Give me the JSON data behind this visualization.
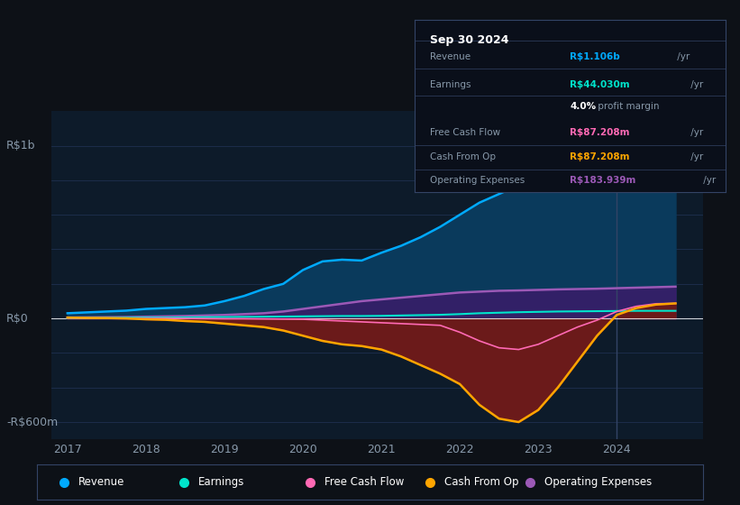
{
  "bg_color": "#0d1117",
  "chart_bg": "#0d1b2a",
  "grid_color": "#1e3050",
  "title_box_date": "Sep 30 2024",
  "info_rows": [
    {
      "label": "Revenue",
      "value": "R$1.106b",
      "unit": "/yr",
      "color": "#00aaff"
    },
    {
      "label": "Earnings",
      "value": "R$44.030m",
      "unit": "/yr",
      "color": "#00e5cc"
    },
    {
      "label": "",
      "value": "4.0%",
      "unit": " profit margin",
      "color": "#ffffff"
    },
    {
      "label": "Free Cash Flow",
      "value": "R$87.208m",
      "unit": "/yr",
      "color": "#ff69b4"
    },
    {
      "label": "Cash From Op",
      "value": "R$87.208m",
      "unit": "/yr",
      "color": "#ffa500"
    },
    {
      "label": "Operating Expenses",
      "value": "R$183.939m",
      "unit": "/yr",
      "color": "#9b59b6"
    }
  ],
  "ylabel_top": "R$1b",
  "ylabel_zero": "R$0",
  "ylabel_bottom": "-R$600m",
  "x_ticks": [
    "2017",
    "2018",
    "2019",
    "2020",
    "2021",
    "2022",
    "2023",
    "2024"
  ],
  "x_values": [
    2017,
    2017.25,
    2017.5,
    2017.75,
    2018,
    2018.25,
    2018.5,
    2018.75,
    2019,
    2019.25,
    2019.5,
    2019.75,
    2020,
    2020.25,
    2020.5,
    2020.75,
    2021,
    2021.25,
    2021.5,
    2021.75,
    2022,
    2022.25,
    2022.5,
    2022.75,
    2023,
    2023.25,
    2023.5,
    2023.75,
    2024,
    2024.25,
    2024.5,
    2024.75
  ],
  "revenue": [
    30,
    35,
    40,
    45,
    55,
    60,
    65,
    75,
    100,
    130,
    170,
    200,
    280,
    330,
    340,
    335,
    380,
    420,
    470,
    530,
    600,
    670,
    720,
    770,
    820,
    870,
    920,
    970,
    1020,
    1060,
    1090,
    1106
  ],
  "earnings": [
    2,
    3,
    3,
    4,
    5,
    5,
    6,
    7,
    8,
    9,
    10,
    11,
    12,
    13,
    14,
    14,
    15,
    17,
    19,
    21,
    25,
    30,
    33,
    36,
    38,
    40,
    41,
    42,
    43,
    44,
    44,
    44
  ],
  "free_cash_flow": [
    2,
    2,
    2,
    1,
    1,
    1,
    0,
    -1,
    -2,
    -2,
    -3,
    -4,
    -5,
    -10,
    -15,
    -20,
    -25,
    -30,
    -35,
    -40,
    -80,
    -130,
    -170,
    -180,
    -150,
    -100,
    -50,
    -10,
    40,
    70,
    85,
    87
  ],
  "cash_from_op": [
    5,
    3,
    2,
    0,
    -5,
    -8,
    -15,
    -20,
    -30,
    -40,
    -50,
    -70,
    -100,
    -130,
    -150,
    -160,
    -180,
    -220,
    -270,
    -320,
    -380,
    -500,
    -580,
    -600,
    -530,
    -400,
    -250,
    -100,
    20,
    60,
    80,
    87
  ],
  "operating_expenses": [
    5,
    6,
    7,
    8,
    10,
    12,
    14,
    17,
    20,
    25,
    30,
    40,
    55,
    70,
    85,
    100,
    110,
    120,
    130,
    140,
    150,
    155,
    160,
    162,
    165,
    168,
    170,
    172,
    175,
    178,
    181,
    184
  ],
  "revenue_color": "#00aaff",
  "revenue_fill": "#0a3a5c",
  "earnings_color": "#00e5cc",
  "free_cash_flow_color": "#ff69b4",
  "cash_from_op_color": "#ffa500",
  "cash_from_op_fill_pos": "#5a3a00",
  "cash_from_op_fill_neg": "#6b1a1a",
  "operating_expenses_color": "#9b59b6",
  "operating_expenses_fill": "#3d1a6b",
  "vline_x": 2024,
  "ylim": [
    -700,
    1200
  ],
  "legend_labels": [
    "Revenue",
    "Earnings",
    "Free Cash Flow",
    "Cash From Op",
    "Operating Expenses"
  ],
  "legend_colors": [
    "#00aaff",
    "#00e5cc",
    "#ff69b4",
    "#ffa500",
    "#9b59b6"
  ]
}
